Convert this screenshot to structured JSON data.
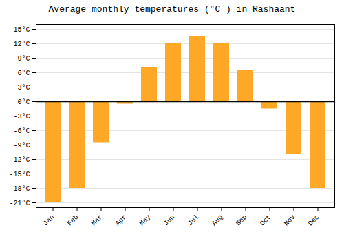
{
  "chart_data": {
    "type": "bar",
    "title": "Average monthly temperatures (°C ) in Rashaant",
    "categories": [
      "Jan",
      "Feb",
      "Mar",
      "Apr",
      "May",
      "Jun",
      "Jul",
      "Aug",
      "Sep",
      "Oct",
      "Nov",
      "Dec"
    ],
    "values": [
      -21,
      -18,
      -8.5,
      -0.5,
      7,
      12,
      13.5,
      12,
      6.5,
      -1.5,
      -11,
      -18
    ],
    "color": "#FFA726",
    "ylim": [
      -22,
      16
    ],
    "yticks": [
      {
        "value": -21,
        "label": "-21°C"
      },
      {
        "value": -18,
        "label": "-18°C"
      },
      {
        "value": -15,
        "label": "-15°C"
      },
      {
        "value": -12,
        "label": "-12°C"
      },
      {
        "value": -9,
        "label": "-9°C"
      },
      {
        "value": -6,
        "label": "-6°C"
      },
      {
        "value": -3,
        "label": "-3°C"
      },
      {
        "value": 0,
        "label": "0°C"
      },
      {
        "value": 3,
        "label": "3°C"
      },
      {
        "value": 6,
        "label": "6°C"
      },
      {
        "value": 9,
        "label": "9°C"
      },
      {
        "value": 12,
        "label": "12°C"
      },
      {
        "value": 15,
        "label": "15°C"
      }
    ],
    "grid": true
  }
}
